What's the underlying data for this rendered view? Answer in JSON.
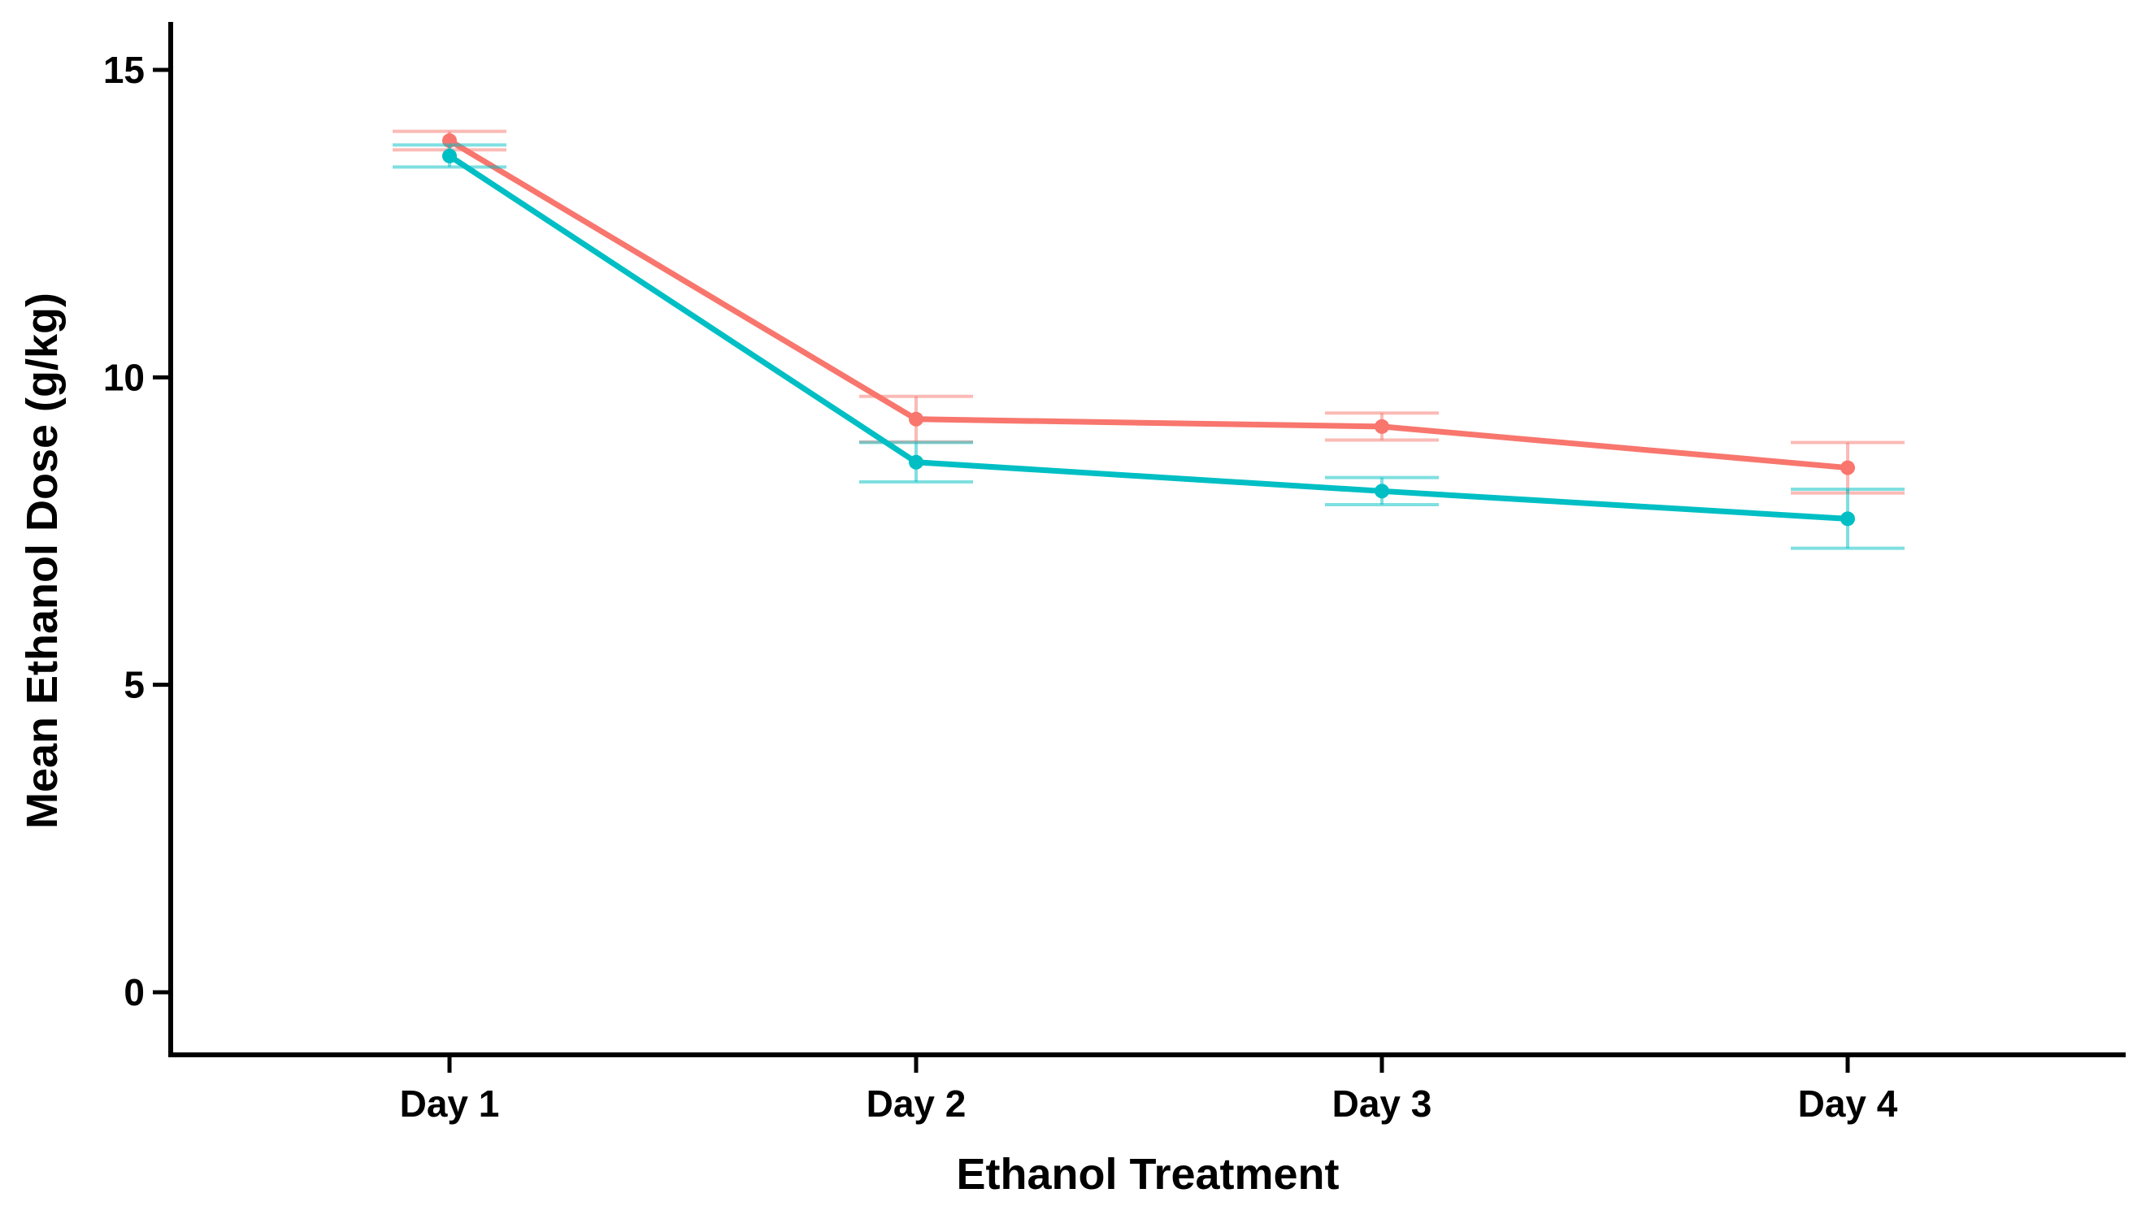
{
  "chart_data": {
    "type": "line",
    "xlabel": "Ethanol Treatment",
    "ylabel": "Mean Ethanol Dose (g/kg)",
    "categories": [
      "Day 1",
      "Day 2",
      "Day 3",
      "Day 4"
    ],
    "ylim": [
      -1,
      15.8
    ],
    "yticks": [
      0,
      5,
      10,
      15
    ],
    "grid": false,
    "legend": "none",
    "series": [
      {
        "color": "#f8766d",
        "values": [
          13.85,
          9.32,
          9.2,
          8.53
        ],
        "err_low": [
          13.7,
          8.95,
          8.98,
          8.12
        ],
        "err_high": [
          14.0,
          9.69,
          9.42,
          8.94
        ]
      },
      {
        "color": "#00bfc4",
        "values": [
          13.6,
          8.62,
          8.15,
          7.7
        ],
        "err_low": [
          13.42,
          8.3,
          7.93,
          7.22
        ],
        "err_high": [
          13.78,
          8.94,
          8.37,
          8.18
        ]
      }
    ]
  }
}
